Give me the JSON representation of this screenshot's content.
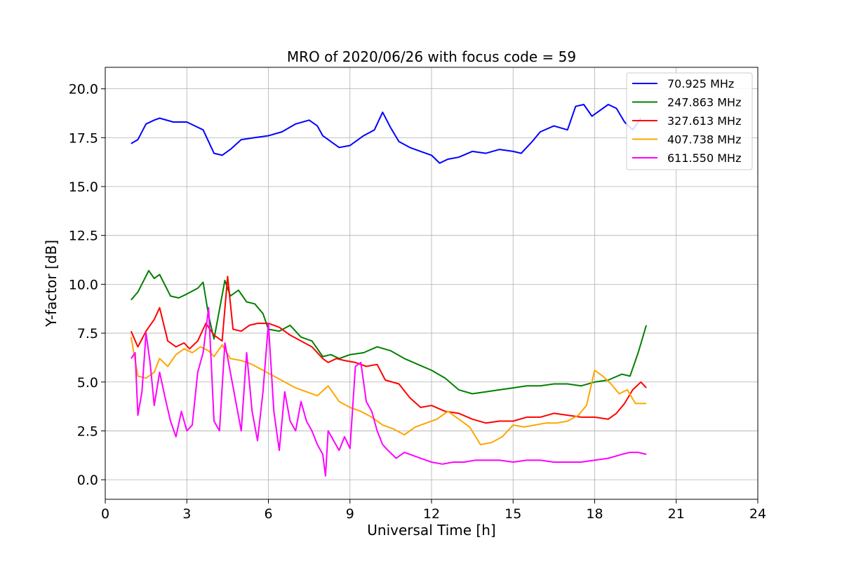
{
  "chart_data": {
    "type": "line",
    "title": "MRO of 2020/06/26 with focus code = 59",
    "xlabel": "Universal Time [h]",
    "ylabel": "Y-factor [dB]",
    "xlim": [
      0,
      24
    ],
    "ylim": [
      -1.0,
      21.1
    ],
    "xticks": [
      0,
      3,
      6,
      9,
      12,
      15,
      18,
      21,
      24
    ],
    "xtick_labels": [
      "0",
      "3",
      "6",
      "9",
      "12",
      "15",
      "18",
      "21",
      "24"
    ],
    "yticks": [
      0.0,
      2.5,
      5.0,
      7.5,
      10.0,
      12.5,
      15.0,
      17.5,
      20.0
    ],
    "ytick_labels": [
      "0.0",
      "2.5",
      "5.0",
      "7.5",
      "10.0",
      "12.5",
      "15.0",
      "17.5",
      "20.0"
    ],
    "grid": true,
    "legend_position": "top-right",
    "series": [
      {
        "name": " 70.925 MHz",
        "color": "#0000ff",
        "x": [
          0.95,
          1.2,
          1.5,
          1.8,
          2.0,
          2.5,
          3.0,
          3.3,
          3.6,
          4.0,
          4.3,
          4.6,
          5.0,
          5.5,
          6.0,
          6.5,
          7.0,
          7.5,
          7.8,
          8.0,
          8.1,
          8.3,
          8.6,
          9.0,
          9.5,
          9.9,
          10.2,
          10.5,
          10.8,
          11.2,
          11.6,
          12.0,
          12.3,
          12.6,
          13.0,
          13.5,
          14.0,
          14.5,
          15.0,
          15.3,
          15.7,
          16.0,
          16.5,
          17.0,
          17.3,
          17.6,
          17.9,
          18.2,
          18.5,
          18.8,
          19.1,
          19.4,
          19.7
        ],
        "y": [
          17.2,
          17.4,
          18.2,
          18.4,
          18.5,
          18.3,
          18.3,
          18.1,
          17.9,
          16.7,
          16.6,
          16.9,
          17.4,
          17.5,
          17.6,
          17.8,
          18.2,
          18.4,
          18.1,
          17.6,
          17.5,
          17.3,
          17.0,
          17.1,
          17.6,
          17.9,
          18.8,
          18.0,
          17.3,
          17.0,
          16.8,
          16.6,
          16.2,
          16.4,
          16.5,
          16.8,
          16.7,
          16.9,
          16.8,
          16.7,
          17.3,
          17.8,
          18.1,
          17.9,
          19.1,
          19.2,
          18.6,
          18.9,
          19.2,
          19.0,
          18.3,
          17.9,
          18.5
        ]
      },
      {
        "name": "247.863 MHz",
        "color": "#008000",
        "x": [
          0.95,
          1.2,
          1.6,
          1.8,
          2.0,
          2.4,
          2.7,
          3.0,
          3.4,
          3.6,
          3.8,
          4.0,
          4.4,
          4.6,
          4.9,
          5.2,
          5.5,
          5.8,
          6.0,
          6.4,
          6.8,
          7.2,
          7.6,
          8.0,
          8.3,
          8.6,
          9.0,
          9.5,
          10.0,
          10.5,
          11.0,
          11.5,
          12.0,
          12.5,
          13.0,
          13.5,
          14.0,
          14.5,
          15.0,
          15.5,
          16.0,
          16.5,
          17.0,
          17.5,
          18.0,
          18.5,
          19.0,
          19.3,
          19.6,
          19.9
        ],
        "y": [
          9.2,
          9.6,
          10.7,
          10.3,
          10.5,
          9.4,
          9.3,
          9.5,
          9.8,
          10.1,
          8.4,
          7.2,
          10.2,
          9.4,
          9.7,
          9.1,
          9.0,
          8.5,
          7.7,
          7.6,
          7.9,
          7.3,
          7.1,
          6.3,
          6.4,
          6.2,
          6.4,
          6.5,
          6.8,
          6.6,
          6.2,
          5.9,
          5.6,
          5.2,
          4.6,
          4.4,
          4.5,
          4.6,
          4.7,
          4.8,
          4.8,
          4.9,
          4.9,
          4.8,
          5.0,
          5.1,
          5.4,
          5.3,
          6.5,
          7.9
        ]
      },
      {
        "name": "327.613 MHz",
        "color": "#ff0000",
        "x": [
          0.95,
          1.2,
          1.5,
          1.8,
          2.0,
          2.3,
          2.6,
          2.9,
          3.1,
          3.4,
          3.7,
          4.0,
          4.3,
          4.5,
          4.7,
          5.0,
          5.3,
          5.6,
          6.0,
          6.4,
          6.8,
          7.2,
          7.6,
          8.0,
          8.2,
          8.5,
          8.8,
          9.2,
          9.6,
          10.0,
          10.3,
          10.8,
          11.2,
          11.6,
          12.0,
          12.5,
          13.0,
          13.5,
          14.0,
          14.5,
          15.0,
          15.5,
          16.0,
          16.5,
          17.0,
          17.5,
          18.0,
          18.5,
          18.8,
          19.1,
          19.4,
          19.7,
          19.9
        ],
        "y": [
          7.6,
          6.8,
          7.6,
          8.2,
          8.8,
          7.1,
          6.8,
          7.0,
          6.7,
          7.1,
          8.0,
          7.4,
          7.1,
          10.4,
          7.7,
          7.6,
          7.9,
          8.0,
          8.0,
          7.8,
          7.4,
          7.1,
          6.8,
          6.2,
          6.0,
          6.2,
          6.1,
          6.0,
          5.8,
          5.9,
          5.1,
          4.9,
          4.2,
          3.7,
          3.8,
          3.5,
          3.4,
          3.1,
          2.9,
          3.0,
          3.0,
          3.2,
          3.2,
          3.4,
          3.3,
          3.2,
          3.2,
          3.1,
          3.4,
          3.9,
          4.6,
          5.0,
          4.7
        ]
      },
      {
        "name": "407.738 MHz",
        "color": "#ffa500",
        "x": [
          0.95,
          1.2,
          1.5,
          1.8,
          2.0,
          2.3,
          2.6,
          2.9,
          3.2,
          3.5,
          3.8,
          4.0,
          4.3,
          4.6,
          5.0,
          5.4,
          5.8,
          6.2,
          6.6,
          7.0,
          7.4,
          7.8,
          8.2,
          8.6,
          9.0,
          9.4,
          9.8,
          10.2,
          10.6,
          11.0,
          11.4,
          11.8,
          12.2,
          12.6,
          13.0,
          13.4,
          13.8,
          14.2,
          14.6,
          15.0,
          15.4,
          15.8,
          16.2,
          16.6,
          17.0,
          17.4,
          17.7,
          18.0,
          18.3,
          18.6,
          18.9,
          19.2,
          19.5,
          19.9
        ],
        "y": [
          7.3,
          5.3,
          5.2,
          5.5,
          6.2,
          5.8,
          6.4,
          6.7,
          6.5,
          6.8,
          6.6,
          6.3,
          6.9,
          6.2,
          6.1,
          5.9,
          5.6,
          5.3,
          5.0,
          4.7,
          4.5,
          4.3,
          4.8,
          4.0,
          3.7,
          3.5,
          3.2,
          2.8,
          2.6,
          2.3,
          2.7,
          2.9,
          3.1,
          3.5,
          3.1,
          2.7,
          1.8,
          1.9,
          2.2,
          2.8,
          2.7,
          2.8,
          2.9,
          2.9,
          3.0,
          3.3,
          3.8,
          5.6,
          5.3,
          4.9,
          4.4,
          4.6,
          3.9,
          3.9
        ]
      },
      {
        "name": "611.550 MHz",
        "color": "#ff00ff",
        "x": [
          0.95,
          1.1,
          1.2,
          1.35,
          1.5,
          1.65,
          1.8,
          2.0,
          2.2,
          2.4,
          2.6,
          2.8,
          3.0,
          3.2,
          3.4,
          3.6,
          3.8,
          4.0,
          4.2,
          4.4,
          4.6,
          4.8,
          5.0,
          5.2,
          5.4,
          5.6,
          5.8,
          6.0,
          6.2,
          6.4,
          6.6,
          6.8,
          7.0,
          7.2,
          7.4,
          7.6,
          7.8,
          8.0,
          8.1,
          8.2,
          8.4,
          8.6,
          8.8,
          9.0,
          9.2,
          9.4,
          9.6,
          9.8,
          10.0,
          10.2,
          10.4,
          10.7,
          11.0,
          11.4,
          11.8,
          12.0,
          12.4,
          12.8,
          13.2,
          13.6,
          14.0,
          14.5,
          15.0,
          15.5,
          16.0,
          16.5,
          17.0,
          17.5,
          18.0,
          18.5,
          19.0,
          19.3,
          19.6,
          19.9
        ],
        "y": [
          6.2,
          6.5,
          3.3,
          4.5,
          7.5,
          6.0,
          3.8,
          5.5,
          4.2,
          3.0,
          2.2,
          3.5,
          2.5,
          2.8,
          5.5,
          6.5,
          8.8,
          3.0,
          2.5,
          7.0,
          5.5,
          4.0,
          2.5,
          6.5,
          3.5,
          2.0,
          4.5,
          8.0,
          3.5,
          1.5,
          4.5,
          3.0,
          2.5,
          4.0,
          3.0,
          2.5,
          1.8,
          1.3,
          0.2,
          2.5,
          2.0,
          1.5,
          2.2,
          1.6,
          5.8,
          6.0,
          4.0,
          3.5,
          2.5,
          1.8,
          1.5,
          1.1,
          1.4,
          1.2,
          1.0,
          0.9,
          0.8,
          0.9,
          0.9,
          1.0,
          1.0,
          1.0,
          0.9,
          1.0,
          1.0,
          0.9,
          0.9,
          0.9,
          1.0,
          1.1,
          1.3,
          1.4,
          1.4,
          1.3
        ]
      }
    ]
  }
}
